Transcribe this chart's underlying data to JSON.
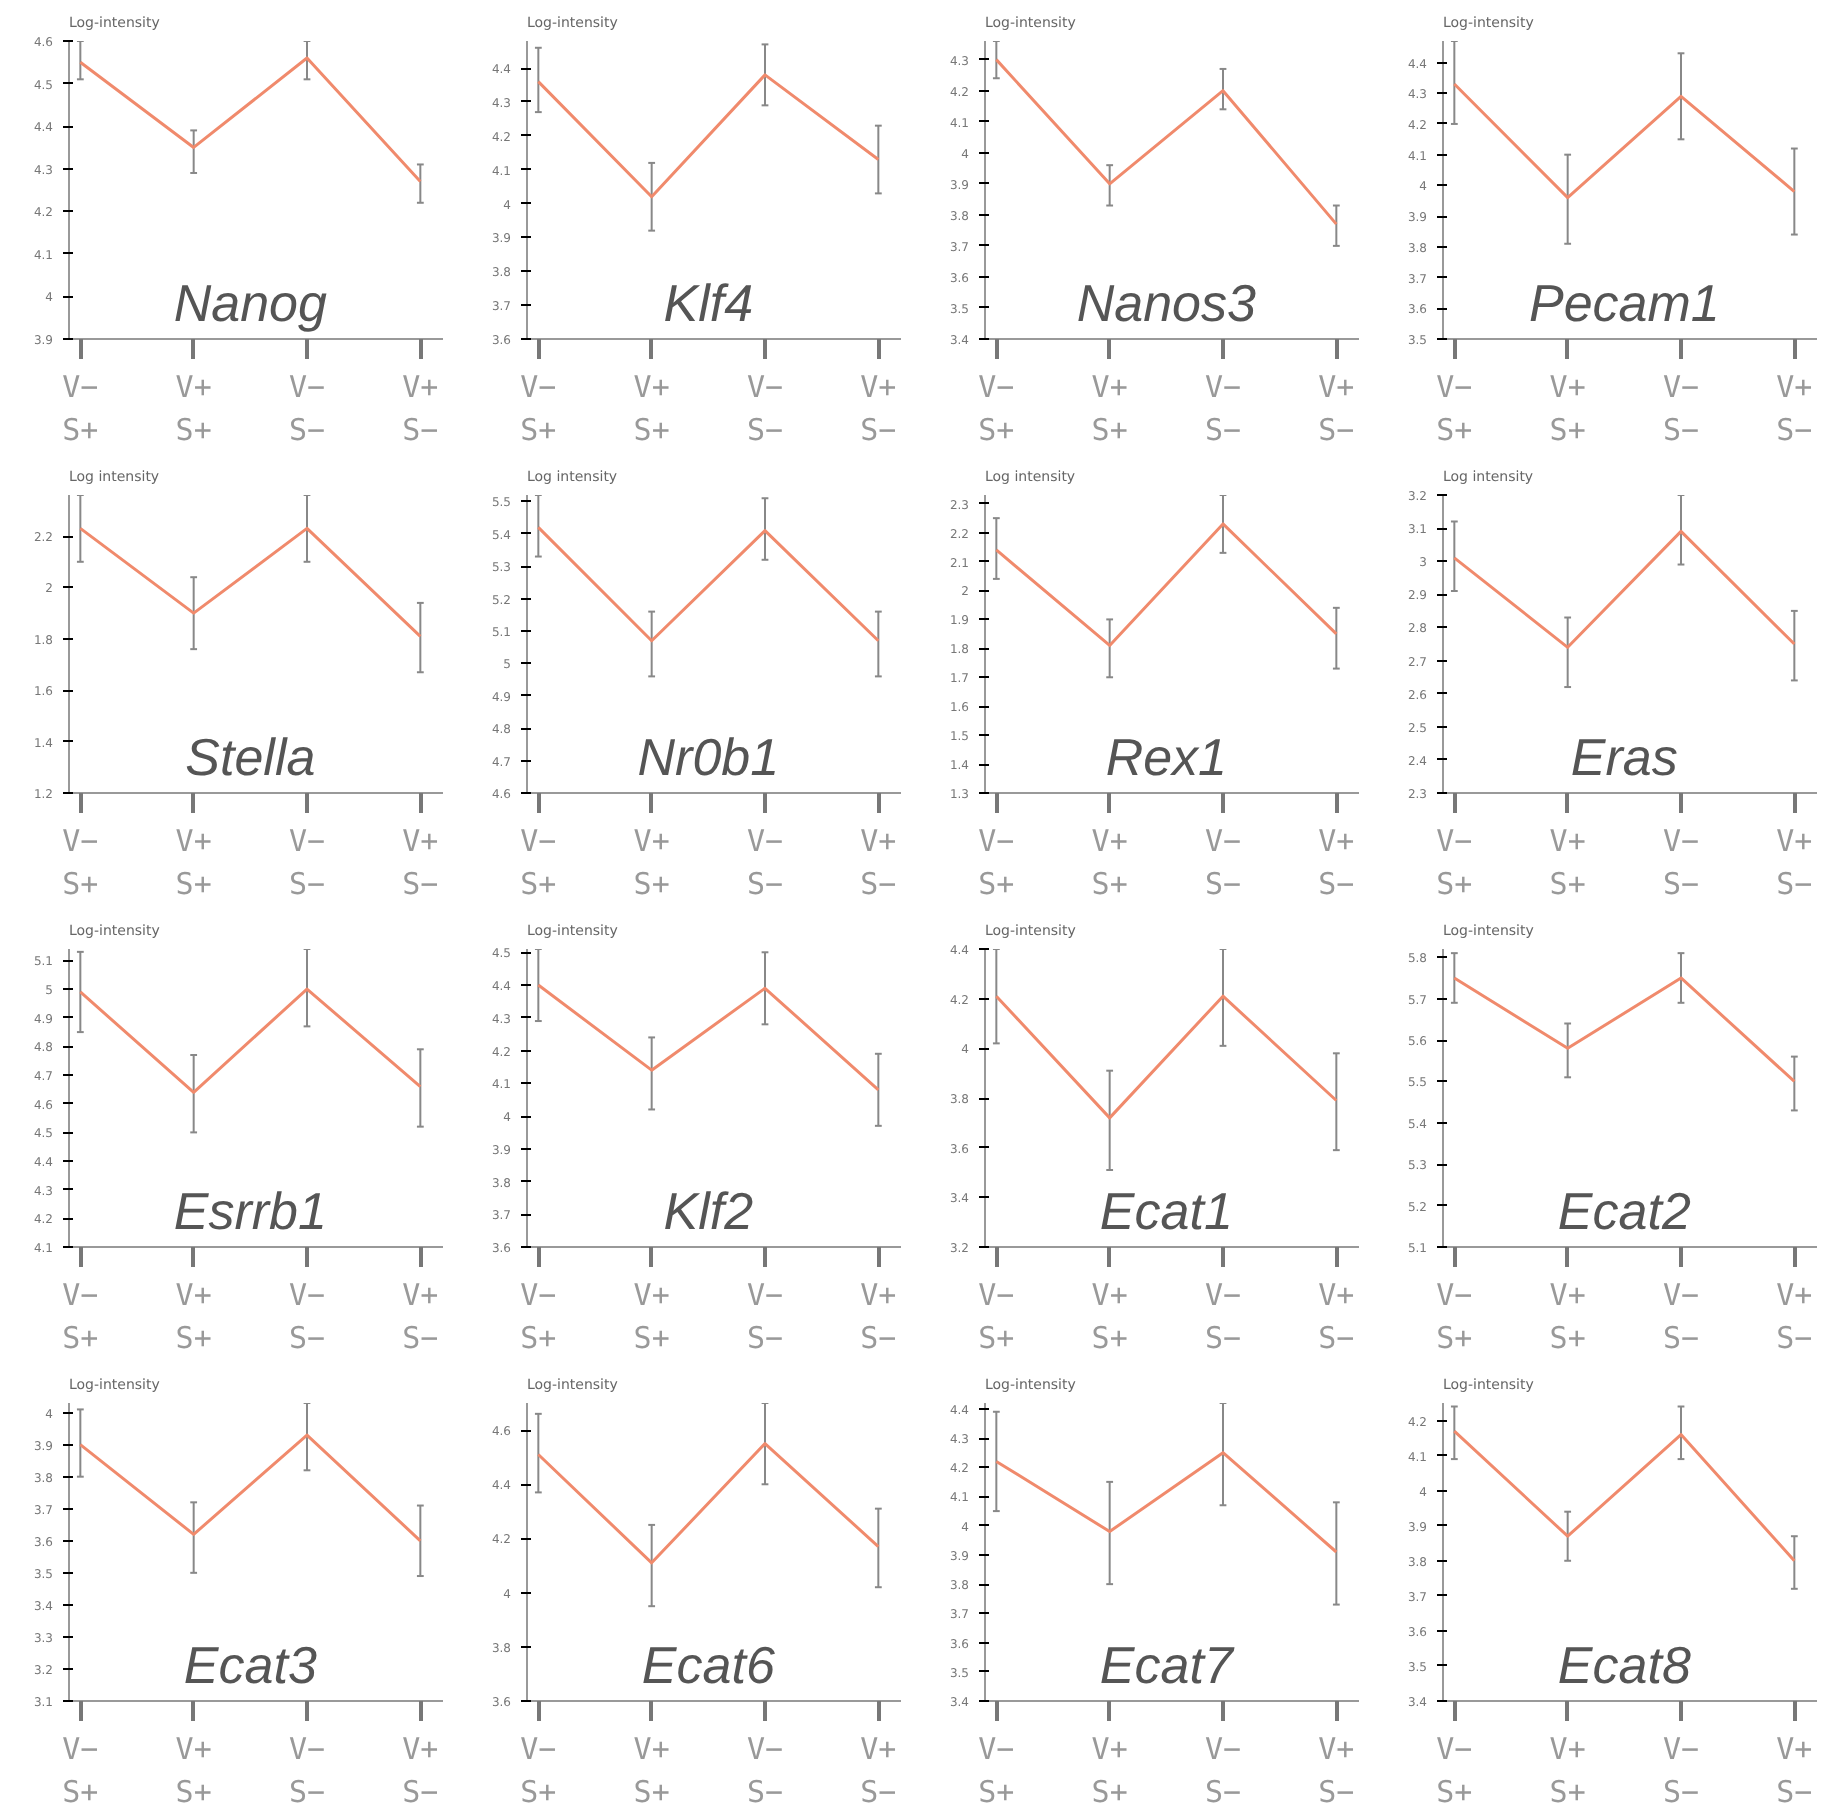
{
  "chart_data": [
    {
      "type": "line",
      "title": "Nanog",
      "ylabel": "Log-intensity",
      "categories": [
        "V−\nS+",
        "V+\nS+",
        "V−\nS−",
        "V+\nS−"
      ],
      "series": [
        {
          "color": "#f08a6c",
          "values": [
            4.55,
            4.35,
            4.56,
            4.27
          ],
          "errors": [
            [
              4.51,
              4.6
            ],
            [
              4.29,
              4.39
            ],
            [
              4.51,
              4.6
            ],
            [
              4.22,
              4.31
            ]
          ]
        }
      ],
      "ylim": [
        3.9,
        4.6
      ],
      "yticks": [
        3.9,
        4,
        4.1,
        4.2,
        4.3,
        4.4,
        4.5,
        4.6
      ],
      "grid": false
    },
    {
      "type": "line",
      "title": "Klf4",
      "ylabel": "Log-intensity",
      "categories": [
        "V−\nS+",
        "V+\nS+",
        "V−\nS−",
        "V+\nS−"
      ],
      "series": [
        {
          "color": "#f08a6c",
          "values": [
            4.36,
            4.02,
            4.38,
            4.13
          ],
          "errors": [
            [
              4.27,
              4.46
            ],
            [
              3.92,
              4.12
            ],
            [
              4.29,
              4.47
            ],
            [
              4.03,
              4.23
            ]
          ]
        }
      ],
      "ylim": [
        3.6,
        4.48
      ],
      "yticks": [
        3.6,
        3.7,
        3.8,
        3.9,
        4,
        4.1,
        4.2,
        4.3,
        4.4
      ],
      "grid": false
    },
    {
      "type": "line",
      "title": "Nanos3",
      "ylabel": "Log-intensity",
      "categories": [
        "V−\nS+",
        "V+\nS+",
        "V−\nS−",
        "V+\nS−"
      ],
      "series": [
        {
          "color": "#f08a6c",
          "values": [
            4.3,
            3.9,
            4.2,
            3.77
          ],
          "errors": [
            [
              4.24,
              4.36
            ],
            [
              3.83,
              3.96
            ],
            [
              4.14,
              4.27
            ],
            [
              3.7,
              3.83
            ]
          ]
        }
      ],
      "ylim": [
        3.4,
        4.36
      ],
      "yticks": [
        3.4,
        3.5,
        3.6,
        3.7,
        3.8,
        3.9,
        4,
        4.1,
        4.2,
        4.3
      ],
      "grid": false
    },
    {
      "type": "line",
      "title": "Pecam1",
      "ylabel": "Log-intensity",
      "categories": [
        "V−\nS+",
        "V+\nS+",
        "V−\nS−",
        "V+\nS−"
      ],
      "series": [
        {
          "color": "#f08a6c",
          "values": [
            4.33,
            3.96,
            4.29,
            3.98
          ],
          "errors": [
            [
              4.2,
              4.47
            ],
            [
              3.81,
              4.1
            ],
            [
              4.15,
              4.43
            ],
            [
              3.84,
              4.12
            ]
          ]
        }
      ],
      "ylim": [
        3.5,
        4.47
      ],
      "yticks": [
        3.5,
        3.6,
        3.7,
        3.8,
        3.9,
        4,
        4.1,
        4.2,
        4.3,
        4.4
      ],
      "grid": false
    },
    {
      "type": "line",
      "title": "Stella",
      "ylabel": "Log intensity",
      "categories": [
        "V−\nS+",
        "V+\nS+",
        "V−\nS−",
        "V+\nS−"
      ],
      "series": [
        {
          "color": "#f08a6c",
          "values": [
            2.23,
            1.9,
            2.23,
            1.81
          ],
          "errors": [
            [
              2.1,
              2.36
            ],
            [
              1.76,
              2.04
            ],
            [
              2.1,
              2.36
            ],
            [
              1.67,
              1.94
            ]
          ]
        }
      ],
      "ylim": [
        1.2,
        2.36
      ],
      "yticks": [
        1.2,
        1.4,
        1.6,
        1.8,
        2,
        2.2
      ],
      "grid": false
    },
    {
      "type": "line",
      "title": "Nr0b1",
      "ylabel": "Log intensity",
      "categories": [
        "V−\nS+",
        "V+\nS+",
        "V−\nS−",
        "V+\nS−"
      ],
      "series": [
        {
          "color": "#f08a6c",
          "values": [
            5.42,
            5.07,
            5.41,
            5.07
          ],
          "errors": [
            [
              5.33,
              5.52
            ],
            [
              4.96,
              5.16
            ],
            [
              5.32,
              5.51
            ],
            [
              4.96,
              5.16
            ]
          ]
        }
      ],
      "ylim": [
        4.6,
        5.52
      ],
      "yticks": [
        4.6,
        4.7,
        4.8,
        4.9,
        5,
        5.1,
        5.2,
        5.3,
        5.4,
        5.5
      ],
      "grid": false
    },
    {
      "type": "line",
      "title": "Rex1",
      "ylabel": "Log intensity",
      "categories": [
        "V−\nS+",
        "V+\nS+",
        "V−\nS−",
        "V+\nS−"
      ],
      "series": [
        {
          "color": "#f08a6c",
          "values": [
            2.14,
            1.81,
            2.23,
            1.85
          ],
          "errors": [
            [
              2.04,
              2.25
            ],
            [
              1.7,
              1.9
            ],
            [
              2.13,
              2.33
            ],
            [
              1.73,
              1.94
            ]
          ]
        }
      ],
      "ylim": [
        1.3,
        2.33
      ],
      "yticks": [
        1.3,
        1.4,
        1.5,
        1.6,
        1.7,
        1.8,
        1.9,
        2,
        2.1,
        2.2,
        2.3
      ],
      "grid": false
    },
    {
      "type": "line",
      "title": "Eras",
      "ylabel": "Log intensity",
      "categories": [
        "V−\nS+",
        "V+\nS+",
        "V−\nS−",
        "V+\nS−"
      ],
      "series": [
        {
          "color": "#f08a6c",
          "values": [
            3.01,
            2.74,
            3.09,
            2.75
          ],
          "errors": [
            [
              2.91,
              3.12
            ],
            [
              2.62,
              2.83
            ],
            [
              2.99,
              3.2
            ],
            [
              2.64,
              2.85
            ]
          ]
        }
      ],
      "ylim": [
        2.3,
        3.2
      ],
      "yticks": [
        2.3,
        2.4,
        2.5,
        2.6,
        2.7,
        2.8,
        2.9,
        3,
        3.1,
        3.2
      ],
      "grid": false
    },
    {
      "type": "line",
      "title": "Esrrb1",
      "ylabel": "Log-intensity",
      "categories": [
        "V−\nS+",
        "V+\nS+",
        "V−\nS−",
        "V+\nS−"
      ],
      "series": [
        {
          "color": "#f08a6c",
          "values": [
            4.99,
            4.64,
            5.0,
            4.66
          ],
          "errors": [
            [
              4.85,
              5.13
            ],
            [
              4.5,
              4.77
            ],
            [
              4.87,
              5.14
            ],
            [
              4.52,
              4.79
            ]
          ]
        }
      ],
      "ylim": [
        4.1,
        5.14
      ],
      "yticks": [
        4.1,
        4.2,
        4.3,
        4.4,
        4.5,
        4.6,
        4.7,
        4.8,
        4.9,
        5,
        5.1
      ],
      "grid": false
    },
    {
      "type": "line",
      "title": "Klf2",
      "ylabel": "Log-intensity",
      "categories": [
        "V−\nS+",
        "V+\nS+",
        "V−\nS−",
        "V+\nS−"
      ],
      "series": [
        {
          "color": "#f08a6c",
          "values": [
            4.4,
            4.14,
            4.39,
            4.08
          ],
          "errors": [
            [
              4.29,
              4.51
            ],
            [
              4.02,
              4.24
            ],
            [
              4.28,
              4.5
            ],
            [
              3.97,
              4.19
            ]
          ]
        }
      ],
      "ylim": [
        3.6,
        4.51
      ],
      "yticks": [
        3.6,
        3.7,
        3.8,
        3.9,
        4,
        4.1,
        4.2,
        4.3,
        4.4,
        4.5
      ],
      "grid": false
    },
    {
      "type": "line",
      "title": "Ecat1",
      "ylabel": "Log-intensity",
      "categories": [
        "V−\nS+",
        "V+\nS+",
        "V−\nS−",
        "V+\nS−"
      ],
      "series": [
        {
          "color": "#f08a6c",
          "values": [
            4.21,
            3.72,
            4.21,
            3.79
          ],
          "errors": [
            [
              4.02,
              4.4
            ],
            [
              3.51,
              3.91
            ],
            [
              4.01,
              4.4
            ],
            [
              3.59,
              3.98
            ]
          ]
        }
      ],
      "ylim": [
        3.2,
        4.4
      ],
      "yticks": [
        3.2,
        3.4,
        3.6,
        3.8,
        4,
        4.2,
        4.4
      ],
      "grid": false
    },
    {
      "type": "line",
      "title": "Ecat2",
      "ylabel": "Log-intensity",
      "categories": [
        "V−\nS+",
        "V+\nS+",
        "V−\nS−",
        "V+\nS−"
      ],
      "series": [
        {
          "color": "#f08a6c",
          "values": [
            5.75,
            5.58,
            5.75,
            5.5
          ],
          "errors": [
            [
              5.69,
              5.81
            ],
            [
              5.51,
              5.64
            ],
            [
              5.69,
              5.81
            ],
            [
              5.43,
              5.56
            ]
          ]
        }
      ],
      "ylim": [
        5.1,
        5.82
      ],
      "yticks": [
        5.1,
        5.2,
        5.3,
        5.4,
        5.5,
        5.6,
        5.7,
        5.8
      ],
      "grid": false
    },
    {
      "type": "line",
      "title": "Ecat3",
      "ylabel": "Log-intensity",
      "categories": [
        "V−\nS+",
        "V+\nS+",
        "V−\nS−",
        "V+\nS−"
      ],
      "series": [
        {
          "color": "#f08a6c",
          "values": [
            3.9,
            3.62,
            3.93,
            3.6
          ],
          "errors": [
            [
              3.8,
              4.01
            ],
            [
              3.5,
              3.72
            ],
            [
              3.82,
              4.03
            ],
            [
              3.49,
              3.71
            ]
          ]
        }
      ],
      "ylim": [
        3.1,
        4.03
      ],
      "yticks": [
        3.1,
        3.2,
        3.3,
        3.4,
        3.5,
        3.6,
        3.7,
        3.8,
        3.9,
        4
      ],
      "grid": false
    },
    {
      "type": "line",
      "title": "Ecat6",
      "ylabel": "Log-intensity",
      "categories": [
        "V−\nS+",
        "V+\nS+",
        "V−\nS−",
        "V+\nS−"
      ],
      "series": [
        {
          "color": "#f08a6c",
          "values": [
            4.51,
            4.11,
            4.55,
            4.17
          ],
          "errors": [
            [
              4.37,
              4.66
            ],
            [
              3.95,
              4.25
            ],
            [
              4.4,
              4.7
            ],
            [
              4.02,
              4.31
            ]
          ]
        }
      ],
      "ylim": [
        3.6,
        4.7
      ],
      "yticks": [
        3.6,
        3.8,
        4,
        4.2,
        4.4,
        4.6
      ],
      "grid": false
    },
    {
      "type": "line",
      "title": "Ecat7",
      "ylabel": "Log-intensity",
      "categories": [
        "V−\nS+",
        "V+\nS+",
        "V−\nS−",
        "V+\nS−"
      ],
      "series": [
        {
          "color": "#f08a6c",
          "values": [
            4.22,
            3.98,
            4.25,
            3.91
          ],
          "errors": [
            [
              4.05,
              4.39
            ],
            [
              3.8,
              4.15
            ],
            [
              4.07,
              4.42
            ],
            [
              3.73,
              4.08
            ]
          ]
        }
      ],
      "ylim": [
        3.4,
        4.42
      ],
      "yticks": [
        3.4,
        3.5,
        3.6,
        3.7,
        3.8,
        3.9,
        4,
        4.1,
        4.2,
        4.3,
        4.4
      ],
      "grid": false
    },
    {
      "type": "line",
      "title": "Ecat8",
      "ylabel": "Log-intensity",
      "categories": [
        "V−\nS+",
        "V+\nS+",
        "V−\nS−",
        "V+\nS−"
      ],
      "series": [
        {
          "color": "#f08a6c",
          "values": [
            4.17,
            3.87,
            4.16,
            3.8
          ],
          "errors": [
            [
              4.09,
              4.24
            ],
            [
              3.8,
              3.94
            ],
            [
              4.09,
              4.24
            ],
            [
              3.72,
              3.87
            ]
          ]
        }
      ],
      "ylim": [
        3.4,
        4.25
      ],
      "yticks": [
        3.4,
        3.5,
        3.6,
        3.7,
        3.8,
        3.9,
        4,
        4.1,
        4.2
      ],
      "grid": false
    }
  ]
}
